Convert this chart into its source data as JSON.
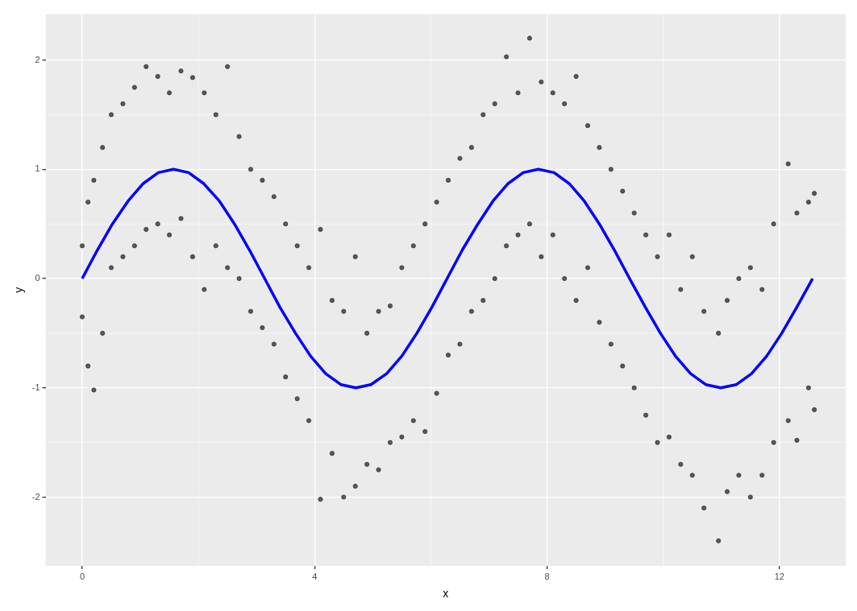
{
  "chart_data": {
    "type": "scatter",
    "xlabel": "x",
    "ylabel": "y",
    "xlim": [
      -0.63,
      13.14
    ],
    "ylim": [
      -2.63,
      2.42
    ],
    "xticks": [
      0,
      4,
      8,
      12
    ],
    "yticks": [
      -2,
      -1,
      0,
      1,
      2
    ],
    "grid": true,
    "series": [
      {
        "type": "scatter",
        "color": "#333333",
        "marker": "circle",
        "x": [
          0,
          0,
          0.1,
          0.1,
          0.2,
          0.2,
          0.35,
          0.35,
          0.5,
          0.5,
          0.7,
          0.7,
          0.9,
          0.9,
          1.1,
          1.1,
          1.3,
          1.3,
          1.5,
          1.5,
          1.7,
          1.7,
          1.9,
          1.9,
          2.1,
          2.1,
          2.3,
          2.3,
          2.5,
          2.5,
          2.7,
          2.7,
          2.9,
          2.9,
          3.1,
          3.1,
          3.3,
          3.3,
          3.5,
          3.5,
          3.7,
          3.7,
          3.9,
          3.9,
          4.1,
          4.1,
          4.3,
          4.3,
          4.5,
          4.5,
          4.7,
          4.7,
          4.9,
          4.9,
          5.1,
          5.1,
          5.3,
          5.3,
          5.5,
          5.5,
          5.7,
          5.7,
          5.9,
          5.9,
          6.1,
          6.1,
          6.3,
          6.3,
          6.5,
          6.5,
          6.7,
          6.7,
          6.9,
          6.9,
          7.1,
          7.1,
          7.3,
          7.3,
          7.5,
          7.5,
          7.7,
          7.7,
          7.9,
          7.9,
          8.1,
          8.1,
          8.3,
          8.3,
          8.5,
          8.5,
          8.7,
          8.7,
          8.9,
          8.9,
          9.1,
          9.1,
          9.3,
          9.3,
          9.5,
          9.5,
          9.7,
          9.7,
          9.9,
          9.9,
          10.1,
          10.1,
          10.3,
          10.3,
          10.5,
          10.5,
          10.7,
          10.7,
          10.95,
          10.95,
          11.1,
          11.1,
          11.3,
          11.3,
          11.5,
          11.5,
          11.7,
          11.7,
          11.9,
          11.9,
          12.15,
          12.15,
          12.3,
          12.3,
          12.5,
          12.5,
          12.6,
          12.6
        ],
        "values": [
          0.3,
          -0.35,
          0.7,
          -0.8,
          0.9,
          -1.02,
          1.2,
          -0.5,
          1.5,
          0.1,
          1.6,
          0.2,
          1.75,
          0.3,
          1.94,
          0.45,
          1.85,
          0.5,
          1.7,
          0.4,
          1.9,
          0.55,
          1.84,
          0.2,
          1.7,
          -0.1,
          1.5,
          0.3,
          1.94,
          0.1,
          1.3,
          0,
          1,
          -0.3,
          0.9,
          -0.45,
          0.75,
          -0.6,
          0.5,
          -0.9,
          0.3,
          -1.1,
          0.1,
          -1.3,
          0.45,
          -2.02,
          -0.2,
          -1.6,
          -0.3,
          -2,
          0.2,
          -1.9,
          -0.5,
          -1.7,
          -0.3,
          -1.75,
          -0.25,
          -1.5,
          0.1,
          -1.45,
          0.3,
          -1.3,
          0.5,
          -1.4,
          0.7,
          -1.05,
          0.9,
          -0.7,
          1.1,
          -0.6,
          1.2,
          -0.3,
          1.5,
          -0.2,
          1.6,
          0,
          2.03,
          0.3,
          1.7,
          0.4,
          2.2,
          0.5,
          1.8,
          0.2,
          1.7,
          0.4,
          1.6,
          0,
          1.85,
          -0.2,
          1.4,
          0.1,
          1.2,
          -0.4,
          1,
          -0.6,
          0.8,
          -0.8,
          0.6,
          -1,
          0.4,
          -1.25,
          0.2,
          -1.5,
          0.4,
          -1.45,
          -0.1,
          -1.7,
          0.2,
          -1.8,
          -0.3,
          -2.1,
          -0.5,
          -2.4,
          -0.2,
          -1.95,
          0,
          -1.8,
          0.1,
          -2,
          -0.1,
          -1.8,
          0.5,
          -1.5,
          1.05,
          -1.3,
          0.6,
          -1.48,
          0.7,
          -1,
          0.78,
          -1.2
        ]
      },
      {
        "type": "line",
        "color": "#0000ff",
        "marker": "none",
        "x": [
          0,
          0.26,
          0.52,
          0.79,
          1.05,
          1.31,
          1.57,
          1.83,
          2.09,
          2.36,
          2.62,
          2.88,
          3.14,
          3.4,
          3.67,
          3.93,
          4.19,
          4.45,
          4.71,
          4.97,
          5.24,
          5.5,
          5.76,
          6.02,
          6.28,
          6.54,
          6.81,
          7.07,
          7.33,
          7.59,
          7.85,
          8.12,
          8.38,
          8.64,
          8.9,
          9.16,
          9.42,
          9.69,
          9.95,
          10.21,
          10.47,
          10.73,
          10.99,
          11.26,
          11.52,
          11.78,
          12.04,
          12.3,
          12.57
        ],
        "values": [
          0,
          0.26,
          0.5,
          0.71,
          0.87,
          0.97,
          1,
          0.97,
          0.87,
          0.71,
          0.5,
          0.26,
          0,
          -0.26,
          -0.5,
          -0.71,
          -0.87,
          -0.97,
          -1,
          -0.97,
          -0.87,
          -0.71,
          -0.5,
          -0.26,
          0,
          0.26,
          0.5,
          0.71,
          0.87,
          0.97,
          1,
          0.97,
          0.87,
          0.71,
          0.5,
          0.26,
          0,
          -0.26,
          -0.5,
          -0.71,
          -0.87,
          -0.97,
          -1,
          -0.97,
          -0.87,
          -0.71,
          -0.5,
          -0.26,
          0
        ]
      }
    ]
  }
}
